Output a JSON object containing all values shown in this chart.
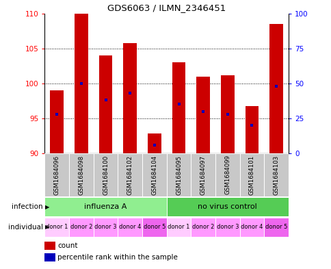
{
  "title": "GDS6063 / ILMN_2346451",
  "samples": [
    "GSM1684096",
    "GSM1684098",
    "GSM1684100",
    "GSM1684102",
    "GSM1684104",
    "GSM1684095",
    "GSM1684097",
    "GSM1684099",
    "GSM1684101",
    "GSM1684103"
  ],
  "count_values": [
    99.0,
    110.0,
    104.0,
    105.8,
    92.8,
    103.0,
    101.0,
    101.2,
    96.8,
    108.5
  ],
  "percentile_values": [
    28,
    50,
    38,
    43,
    6,
    35,
    30,
    28,
    20,
    48
  ],
  "ylim_left": [
    90,
    110
  ],
  "ylim_right": [
    0,
    100
  ],
  "yticks_left": [
    90,
    95,
    100,
    105,
    110
  ],
  "yticks_right": [
    0,
    25,
    50,
    75,
    100
  ],
  "infection_groups": [
    {
      "label": "influenza A",
      "start": 0,
      "end": 5,
      "color": "#90EE90"
    },
    {
      "label": "no virus control",
      "start": 5,
      "end": 10,
      "color": "#55CC55"
    }
  ],
  "individual_labels": [
    "donor 1",
    "donor 2",
    "donor 3",
    "donor 4",
    "donor 5",
    "donor 1",
    "donor 2",
    "donor 3",
    "donor 4",
    "donor 5"
  ],
  "individual_colors": [
    "#FFCCFF",
    "#FF99FF",
    "#FF99FF",
    "#FF99FF",
    "#EE66EE",
    "#FFCCFF",
    "#FF99FF",
    "#FF99FF",
    "#FF99FF",
    "#EE66EE"
  ],
  "bar_color": "#CC0000",
  "dot_color": "#0000BB",
  "bar_bottom": 90,
  "sample_box_color": "#C8C8C8",
  "legend_count_color": "#CC0000",
  "legend_pct_color": "#0000BB"
}
